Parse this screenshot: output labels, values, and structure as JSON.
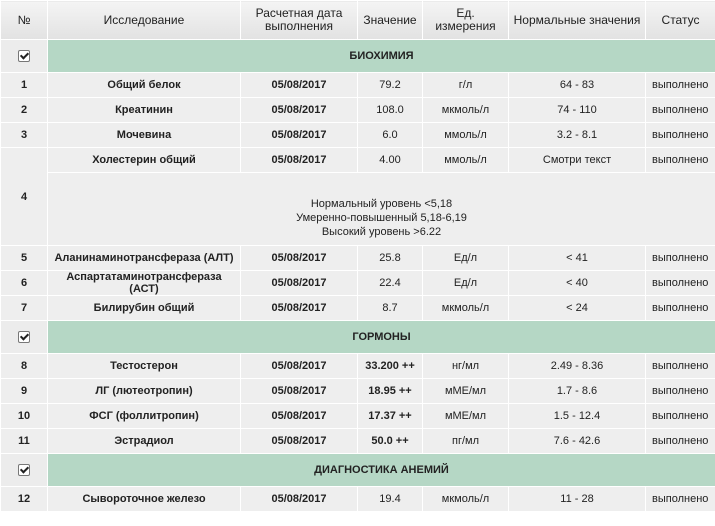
{
  "header": {
    "columns": [
      "№",
      "Исследование",
      "Расчетная дата выполнения",
      "Значение",
      "Ед. измерения",
      "Нормальные значения",
      "Статус"
    ]
  },
  "sections": [
    {
      "title": "БИОХИМИЯ",
      "bold_values": false,
      "rows": [
        {
          "num": "1",
          "name": "Общий белок",
          "date": "05/08/2017",
          "value": "79.2",
          "unit": "г/л",
          "norm": "64 - 83",
          "status": "выполнено"
        },
        {
          "num": "2",
          "name": "Креатинин",
          "date": "05/08/2017",
          "value": "108.0",
          "unit": "мкмоль/л",
          "norm": "74 - 110",
          "status": "выполнено"
        },
        {
          "num": "3",
          "name": "Мочевина",
          "date": "05/08/2017",
          "value": "6.0",
          "unit": "ммоль/л",
          "norm": "3.2 - 8.1",
          "status": "выполнено"
        },
        {
          "num": "4",
          "name": "Холестерин общий",
          "date": "05/08/2017",
          "value": "4.00",
          "unit": "ммоль/л",
          "norm": "Смотри текст",
          "status": "выполнено",
          "note": [
            "Нормальный уровень <5,18",
            "Умеренно-повышенный 5,18-6,19",
            "Высокий уровень >6.22"
          ]
        },
        {
          "num": "5",
          "name": "Аланинаминотрансфераза (АЛТ)",
          "date": "05/08/2017",
          "value": "25.8",
          "unit": "Ед/л",
          "norm": "< 41",
          "status": "выполнено"
        },
        {
          "num": "6",
          "name": "Аспартатаминотрансфераза (АСТ)",
          "date": "05/08/2017",
          "value": "22.4",
          "unit": "Ед/л",
          "norm": "< 40",
          "status": "выполнено"
        },
        {
          "num": "7",
          "name": "Билирубин общий",
          "date": "05/08/2017",
          "value": "8.7",
          "unit": "мкмоль/л",
          "norm": "< 24",
          "status": "выполнено"
        }
      ]
    },
    {
      "title": "ГОРМОНЫ",
      "bold_values": true,
      "rows": [
        {
          "num": "8",
          "name": "Тестостерон",
          "date": "05/08/2017",
          "value": "33.200 ++",
          "unit": "нг/мл",
          "norm": "2.49 - 8.36",
          "status": "выполнено"
        },
        {
          "num": "9",
          "name": "ЛГ (лютеотропин)",
          "date": "05/08/2017",
          "value": "18.95 ++",
          "unit": "мМЕ/мл",
          "norm": "1.7 - 8.6",
          "status": "выполнено"
        },
        {
          "num": "10",
          "name": "ФСГ (фоллитропин)",
          "date": "05/08/2017",
          "value": "17.37 ++",
          "unit": "мМЕ/мл",
          "norm": "1.5 - 12.4",
          "status": "выполнено"
        },
        {
          "num": "11",
          "name": "Эстрадиол",
          "date": "05/08/2017",
          "value": "50.0 ++",
          "unit": "пг/мл",
          "norm": "7.6 - 42.6",
          "status": "выполнено"
        }
      ]
    },
    {
      "title": "ДИАГНОСТИКА АНЕМИЙ",
      "bold_values": false,
      "rows": [
        {
          "num": "12",
          "name": "Сывороточное железо",
          "date": "05/08/2017",
          "value": "19.4",
          "unit": "мкмоль/л",
          "norm": "11 - 28",
          "status": "выполнено"
        }
      ]
    }
  ]
}
